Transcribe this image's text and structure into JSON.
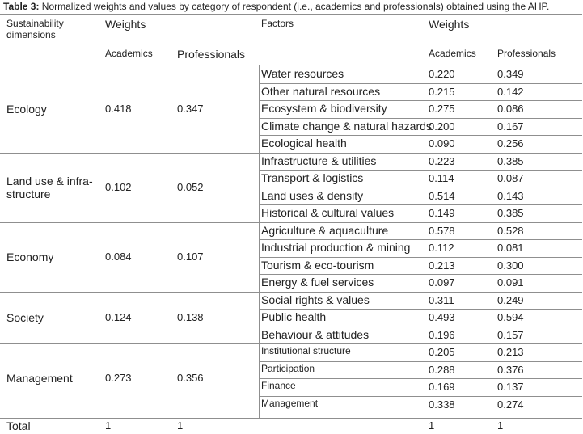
{
  "caption": {
    "label": "Table 3:",
    "text": " Normalized weights and values by category of respondent (i.e., academics and professionals) obtained using the AHP."
  },
  "header": {
    "dim_line1": "Sustainability",
    "dim_line2": "dimensions",
    "weights_left": "Weights",
    "factors": "Factors",
    "weights_right": "Weights",
    "academics_left": "Academics",
    "professionals_left": "Professionals",
    "academics_right": "Academics",
    "professionals_right": "Professionals"
  },
  "groups": [
    {
      "dimension": [
        "Ecology"
      ],
      "academics": "0.418",
      "professionals": "0.347",
      "factors": [
        {
          "name": "Water resources",
          "academics": "0.220",
          "professionals": "0.349"
        },
        {
          "name": "Other natural resources",
          "academics": "0.215",
          "professionals": "0.142"
        },
        {
          "name": "Ecosystem & biodiversity",
          "academics": "0.275",
          "professionals": "0.086"
        },
        {
          "name": "Climate change & natural hazards",
          "academics": "0.200",
          "professionals": "0.167"
        },
        {
          "name": "Ecological health",
          "academics": "0.090",
          "professionals": "0.256"
        }
      ]
    },
    {
      "dimension": [
        "Land use & infra-",
        "structure"
      ],
      "academics": "0.102",
      "professionals": "0.052",
      "factors": [
        {
          "name": "Infrastructure & utilities",
          "academics": "0.223",
          "professionals": "0.385"
        },
        {
          "name": "Transport & logistics",
          "academics": "0.114",
          "professionals": "0.087"
        },
        {
          "name": "Land uses & density",
          "academics": "0.514",
          "professionals": "0.143"
        },
        {
          "name": "Historical & cultural values",
          "academics": "0.149",
          "professionals": "0.385"
        }
      ]
    },
    {
      "dimension": [
        "Economy"
      ],
      "academics": "0.084",
      "professionals": "0.107",
      "factors": [
        {
          "name": "Agriculture & aquaculture",
          "academics": "0.578",
          "professionals": "0.528"
        },
        {
          "name": "Industrial production & mining",
          "academics": "0.112",
          "professionals": "0.081"
        },
        {
          "name": "Tourism & eco-tourism",
          "academics": "0.213",
          "professionals": "0.300"
        },
        {
          "name": "Energy & fuel services",
          "academics": "0.097",
          "professionals": "0.091"
        }
      ]
    },
    {
      "dimension": [
        "Society"
      ],
      "academics": "0.124",
      "professionals": "0.138",
      "factors": [
        {
          "name": "Social rights & values",
          "academics": "0.311",
          "professionals": "0.249"
        },
        {
          "name": "Public health",
          "academics": "0.493",
          "professionals": "0.594"
        },
        {
          "name": "Behaviour & attitudes",
          "academics": "0.196",
          "professionals": "0.157"
        }
      ]
    },
    {
      "dimension": [
        "Management"
      ],
      "academics": "0.273",
      "professionals": "0.356",
      "small_factors": true,
      "factors": [
        {
          "name": "Institutional structure",
          "academics": "0.205",
          "professionals": "0.213"
        },
        {
          "name": "Participation",
          "academics": "0.288",
          "professionals": "0.376"
        },
        {
          "name": "Finance",
          "academics": "0.169",
          "professionals": "0.137"
        },
        {
          "name": "Management",
          "academics": "0.338",
          "professionals": "0.274"
        }
      ]
    }
  ],
  "total": {
    "label": "Total",
    "academics_left": "1",
    "professionals_left": "1",
    "academics_right": "1",
    "professionals_right": "1"
  }
}
